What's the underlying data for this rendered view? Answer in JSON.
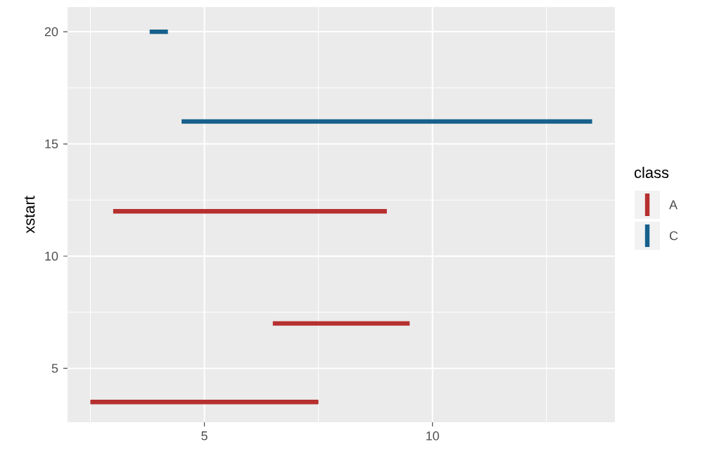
{
  "chart_data": {
    "type": "line",
    "ylabel": "xstart",
    "legend_title": "class",
    "legend": "right",
    "grid": true,
    "marker": "none",
    "line_style": "solid",
    "xlim": [
      2.0,
      14.0
    ],
    "ylim": [
      2.6,
      21.1
    ],
    "xticks": [
      5,
      10
    ],
    "yticks": [
      5,
      10,
      15,
      20
    ],
    "series": [
      {
        "name": "A",
        "color": "#b5302f",
        "x": [
          2.5,
          7.5,
          null,
          6.5,
          9.5,
          null,
          3.0,
          9.0
        ],
        "values": [
          3.5,
          3.5,
          null,
          7,
          7,
          null,
          12,
          12
        ]
      },
      {
        "name": "C",
        "color": "#17608c",
        "x": [
          4.5,
          13.5,
          null,
          3.8,
          4.2
        ],
        "values": [
          16,
          16,
          null,
          20,
          20
        ]
      }
    ]
  }
}
